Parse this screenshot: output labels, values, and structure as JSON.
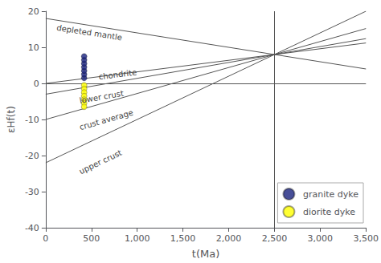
{
  "chart_data": {
    "type": "line",
    "xlabel": "t(Ma)",
    "ylabel": "εHf(t)",
    "xlim": [
      0,
      3500
    ],
    "ylim": [
      -40,
      20
    ],
    "xticks": [
      0,
      500,
      1000,
      1500,
      2000,
      2500,
      3000,
      3500
    ],
    "yticks": [
      -40,
      -30,
      -20,
      -10,
      0,
      10,
      20
    ],
    "grid": false,
    "legend": "lower right",
    "reference_lines": [
      {
        "axis": "x",
        "value": 2500,
        "color": "#555555"
      },
      {
        "axis": "y",
        "value": 0,
        "color": "#555555"
      }
    ],
    "series": [
      {
        "type": "line",
        "color": "#555555",
        "x": [
          0,
          2500,
          3500
        ],
        "values": [
          18,
          8.0,
          4
        ],
        "annotation": {
          "text": "depleted mantle",
          "x": 120,
          "y": 15.5
        }
      },
      {
        "type": "line",
        "color": "#555555",
        "x": [
          0,
          2500,
          3500
        ],
        "values": [
          0,
          8.0,
          11.2
        ],
        "annotation": {
          "text": "chondrite",
          "x": 580,
          "y": 1.8
        }
      },
      {
        "type": "line",
        "color": "#555555",
        "x": [
          0,
          2500,
          3500
        ],
        "values": [
          -3,
          8.0,
          12.4
        ],
        "annotation": {
          "text": "lower crust",
          "x": 370,
          "y": -4.8
        }
      },
      {
        "type": "line",
        "color": "#555555",
        "x": [
          0,
          2500,
          3500
        ],
        "values": [
          -10,
          8.0,
          15.2
        ],
        "annotation": {
          "text": "crust average",
          "x": 370,
          "y": -12.2
        }
      },
      {
        "type": "line",
        "color": "#555555",
        "x": [
          0,
          2500,
          3500
        ],
        "values": [
          -22,
          8.0,
          20
        ],
        "annotation": {
          "text": "upper crust",
          "x": 370,
          "y": -24.5
        }
      },
      {
        "name": "granite dyke",
        "type": "scatter",
        "color": "#1a237e",
        "x": [
          420,
          420,
          420,
          420,
          420,
          420,
          420
        ],
        "values": [
          1.5,
          2.5,
          3.5,
          4.5,
          5.5,
          6.5,
          7.5
        ]
      },
      {
        "name": "diorite dyke",
        "type": "scatter",
        "color": "#ffff00",
        "x": [
          420,
          420,
          420,
          420,
          420,
          420,
          420
        ],
        "values": [
          -0.5,
          -1.5,
          -2.5,
          -3.5,
          -4.5,
          -5.5,
          -6.5
        ]
      }
    ]
  }
}
